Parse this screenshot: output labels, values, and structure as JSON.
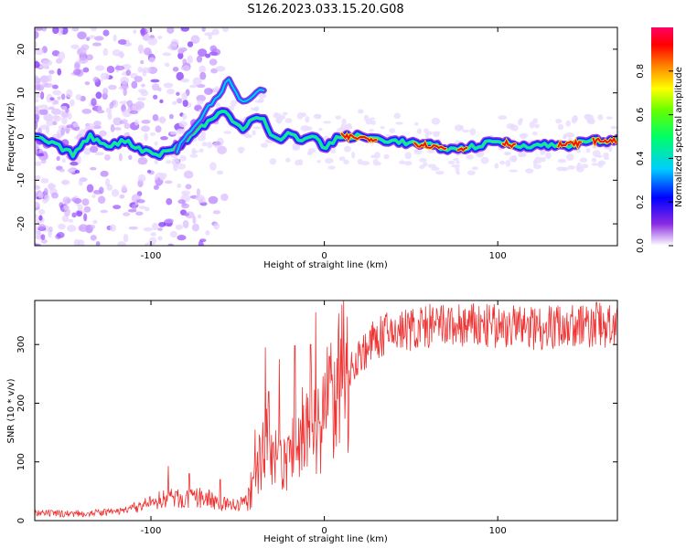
{
  "title": "S126.2023.033.15.20.G08",
  "chart_data": [
    {
      "type": "heatmap",
      "xlabel": "Height of straight line (km)",
      "ylabel": "Frequency (Hz)",
      "xlim": [
        -167,
        169
      ],
      "ylim": [
        -25,
        25
      ],
      "xticks": [
        -100,
        0,
        100
      ],
      "yticks": [
        -20,
        -10,
        0,
        10,
        20
      ],
      "colorbar": {
        "label": "Normalized spectral amplitude",
        "range": [
          0,
          1
        ],
        "ticks": [
          0.0,
          0.2,
          0.4,
          0.6,
          0.8
        ]
      },
      "ridge": [
        {
          "x": -167,
          "y": 0
        },
        {
          "x": -155,
          "y": -2
        },
        {
          "x": -145,
          "y": -4
        },
        {
          "x": -135,
          "y": 0
        },
        {
          "x": -125,
          "y": -2
        },
        {
          "x": -115,
          "y": -1
        },
        {
          "x": -105,
          "y": -3
        },
        {
          "x": -95,
          "y": -4
        },
        {
          "x": -88,
          "y": -3
        },
        {
          "x": -80,
          "y": -1
        },
        {
          "x": -72,
          "y": 2
        },
        {
          "x": -65,
          "y": 4
        },
        {
          "x": -58,
          "y": 6
        },
        {
          "x": -52,
          "y": 3
        },
        {
          "x": -46,
          "y": 2
        },
        {
          "x": -40,
          "y": 5
        },
        {
          "x": -35,
          "y": 4
        },
        {
          "x": -30,
          "y": 0
        },
        {
          "x": -25,
          "y": -1
        },
        {
          "x": -20,
          "y": 1
        },
        {
          "x": -15,
          "y": -1
        },
        {
          "x": -10,
          "y": 0
        },
        {
          "x": -5,
          "y": 0
        },
        {
          "x": 0,
          "y": -3
        },
        {
          "x": 5,
          "y": -1
        },
        {
          "x": 10,
          "y": 0
        },
        {
          "x": 20,
          "y": 0
        },
        {
          "x": 40,
          "y": -1
        },
        {
          "x": 60,
          "y": -2
        },
        {
          "x": 75,
          "y": -3
        },
        {
          "x": 90,
          "y": -2
        },
        {
          "x": 100,
          "y": -1
        },
        {
          "x": 110,
          "y": -2
        },
        {
          "x": 125,
          "y": -2
        },
        {
          "x": 140,
          "y": -2
        },
        {
          "x": 155,
          "y": -1
        },
        {
          "x": 169,
          "y": -1
        }
      ],
      "secondary_ridge": [
        {
          "x": -85,
          "y": -3
        },
        {
          "x": -78,
          "y": 1
        },
        {
          "x": -70,
          "y": 5
        },
        {
          "x": -62,
          "y": 9
        },
        {
          "x": -55,
          "y": 13
        },
        {
          "x": -50,
          "y": 9
        },
        {
          "x": -45,
          "y": 8
        },
        {
          "x": -38,
          "y": 10
        },
        {
          "x": -34,
          "y": 11
        }
      ]
    },
    {
      "type": "line",
      "xlabel": "Height of straight line (km)",
      "ylabel": "SNR (10 * v/v)",
      "xlim": [
        -167,
        169
      ],
      "ylim": [
        0,
        375
      ],
      "xticks": [
        -100,
        0,
        100
      ],
      "yticks": [
        0,
        100,
        200,
        300
      ],
      "color": "#ee3333",
      "trend": [
        {
          "x": -167,
          "y": 12
        },
        {
          "x": -140,
          "y": 12
        },
        {
          "x": -120,
          "y": 15
        },
        {
          "x": -105,
          "y": 25
        },
        {
          "x": -90,
          "y": 40
        },
        {
          "x": -80,
          "y": 35
        },
        {
          "x": -70,
          "y": 40
        },
        {
          "x": -60,
          "y": 30
        },
        {
          "x": -50,
          "y": 25
        },
        {
          "x": -42,
          "y": 40
        },
        {
          "x": -38,
          "y": 100
        },
        {
          "x": -34,
          "y": 130
        },
        {
          "x": -30,
          "y": 110
        },
        {
          "x": -25,
          "y": 90
        },
        {
          "x": -18,
          "y": 120
        },
        {
          "x": -10,
          "y": 150
        },
        {
          "x": -3,
          "y": 170
        },
        {
          "x": 5,
          "y": 210
        },
        {
          "x": 12,
          "y": 250
        },
        {
          "x": 20,
          "y": 280
        },
        {
          "x": 30,
          "y": 310
        },
        {
          "x": 40,
          "y": 322
        },
        {
          "x": 60,
          "y": 330
        },
        {
          "x": 80,
          "y": 332
        },
        {
          "x": 100,
          "y": 330
        },
        {
          "x": 120,
          "y": 330
        },
        {
          "x": 140,
          "y": 332
        },
        {
          "x": 169,
          "y": 332
        }
      ],
      "spikes": [
        {
          "x": -90,
          "y": 93
        },
        {
          "x": -78,
          "y": 80
        },
        {
          "x": -60,
          "y": 70
        },
        {
          "x": -40,
          "y": 155
        },
        {
          "x": -34,
          "y": 295
        },
        {
          "x": -32,
          "y": 220
        },
        {
          "x": -26,
          "y": 275
        },
        {
          "x": -17,
          "y": 298
        },
        {
          "x": -8,
          "y": 300
        },
        {
          "x": -5,
          "y": 355
        },
        {
          "x": 3,
          "y": 280
        },
        {
          "x": 157,
          "y": 372
        }
      ]
    }
  ]
}
